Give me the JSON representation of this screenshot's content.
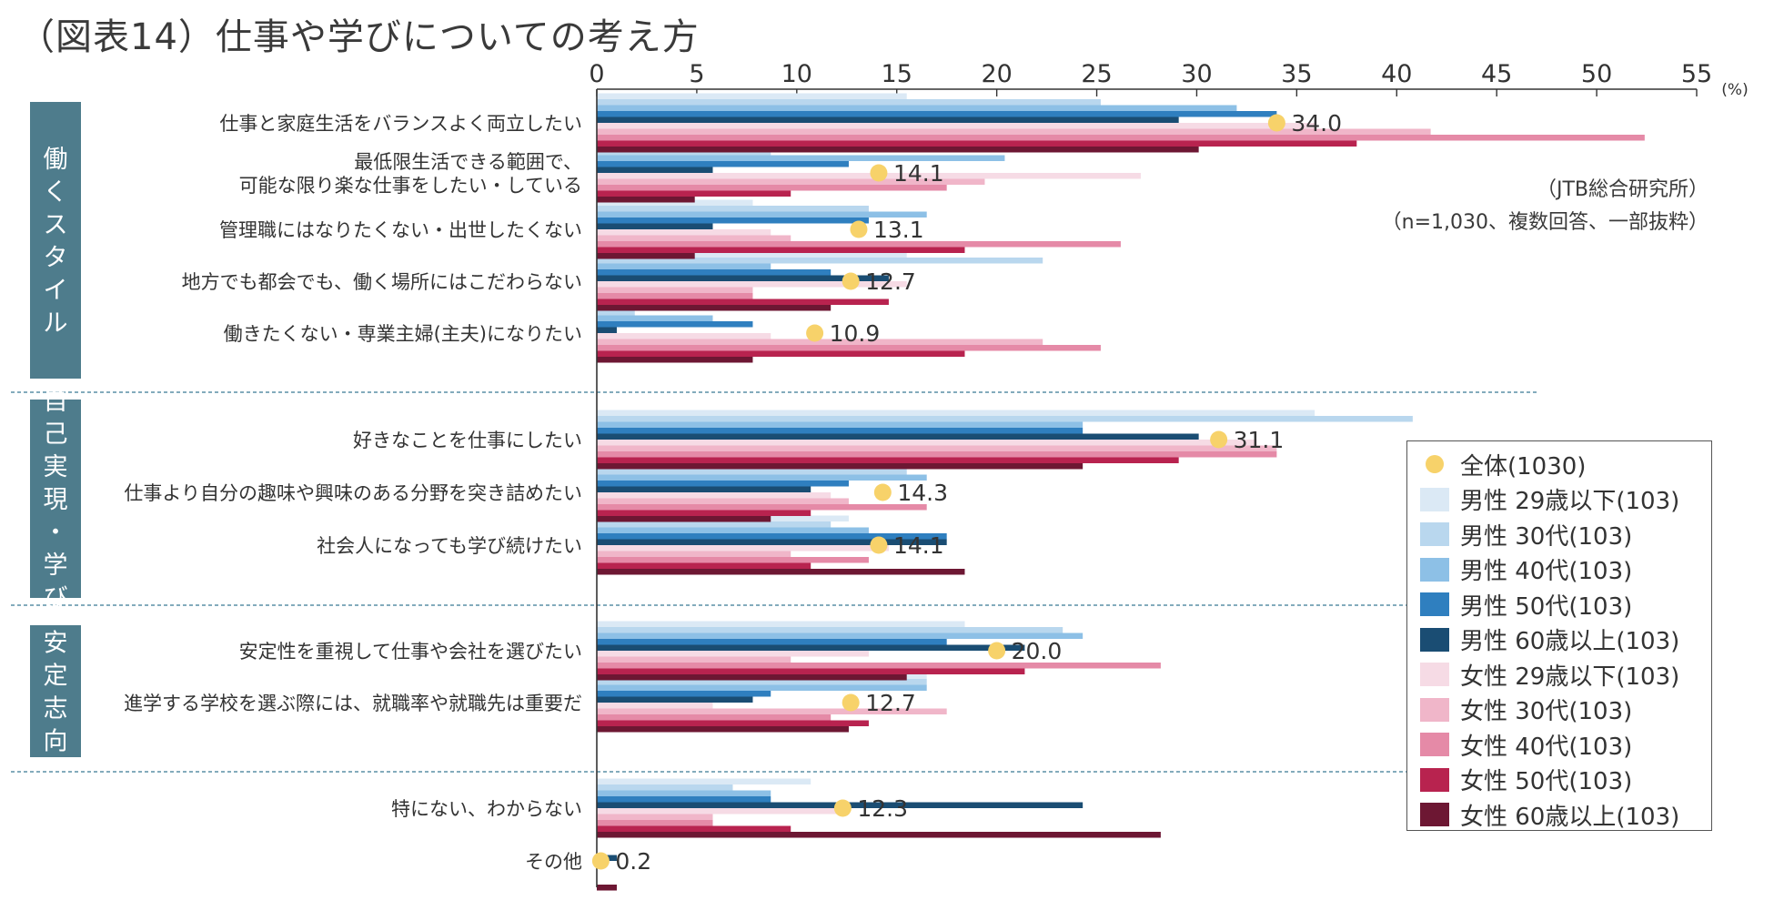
{
  "title": "（図表14）仕事や学びについての考え方",
  "source_note": "（JTB総合研究所）",
  "sample_note": "（n=1,030、複数回答、一部抜粋）",
  "colors": {
    "total_dot": "#f7d26a",
    "category_box": "#4e7c8c",
    "separator": "#5a8fa5",
    "axis": "#333333"
  },
  "chart_data": {
    "type": "bar",
    "orientation": "horizontal",
    "unit": "(%)",
    "xlim": [
      0,
      55
    ],
    "xticks": [
      0,
      5,
      10,
      15,
      20,
      25,
      30,
      35,
      40,
      45,
      50,
      55
    ],
    "groups": [
      {
        "label": "働くスタイル",
        "range": [
          0,
          4
        ]
      },
      {
        "label": "自己実現・学び",
        "range": [
          5,
          7
        ]
      },
      {
        "label": "安定志向",
        "range": [
          8,
          9
        ]
      }
    ],
    "categories": [
      "仕事と家庭生活をバランスよく両立したい",
      "最低限生活できる範囲で、\n可能な限り楽な仕事をしたい・している",
      "管理職にはなりたくない・出世したくない",
      "地方でも都会でも、働く場所にはこだわらない",
      "働きたくない・専業主婦(主夫)になりたい",
      "好きなことを仕事にしたい",
      "仕事より自分の趣味や興味のある分野を突き詰めたい",
      "社会人になっても学び続けたい",
      "安定性を重視して仕事や会社を選びたい",
      "進学する学校を選ぶ際には、就職率や就職先は重要だ",
      "特にない、わからない",
      "その他"
    ],
    "total": {
      "name": "全体(1030)",
      "values": [
        34.0,
        14.1,
        13.1,
        12.7,
        10.9,
        31.1,
        14.3,
        14.1,
        20.0,
        12.7,
        12.3,
        0.2
      ],
      "labels": [
        "34.0",
        "14.1",
        "13.1",
        "12.7",
        "10.9",
        "31.1",
        "14.3",
        "14.1",
        "20.0",
        "12.7",
        "12.3",
        "0.2"
      ]
    },
    "series": [
      {
        "name": "男性 29歳以下(103)",
        "color": "#dbe9f5",
        "values": [
          15.5,
          14.6,
          7.8,
          15.5,
          9.7,
          35.9,
          21.4,
          12.6,
          18.4,
          16.5,
          10.7,
          0
        ]
      },
      {
        "name": "男性 30代(103)",
        "color": "#b9d7ee",
        "values": [
          25.2,
          8.7,
          13.6,
          22.3,
          1.9,
          40.8,
          15.5,
          11.7,
          23.3,
          16.5,
          6.8,
          0
        ]
      },
      {
        "name": "男性 40代(103)",
        "color": "#8dc0e6",
        "values": [
          32.0,
          20.4,
          16.5,
          8.7,
          5.8,
          24.3,
          16.5,
          13.6,
          24.3,
          16.5,
          8.7,
          0
        ]
      },
      {
        "name": "男性 50代(103)",
        "color": "#2f7fbf",
        "values": [
          34.0,
          12.6,
          13.6,
          11.7,
          7.8,
          24.3,
          12.6,
          17.5,
          17.5,
          8.7,
          8.7,
          0
        ]
      },
      {
        "name": "男性 60歳以上(103)",
        "color": "#1a4d73",
        "values": [
          29.1,
          5.8,
          5.8,
          14.6,
          1.0,
          30.1,
          10.7,
          17.5,
          21.4,
          7.8,
          24.3,
          1.0
        ]
      },
      {
        "name": "女性 29歳以下(103)",
        "color": "#f6dbe5",
        "values": [
          35.9,
          27.2,
          8.7,
          15.5,
          8.7,
          33.0,
          11.7,
          14.6,
          13.6,
          5.8,
          12.6,
          0
        ]
      },
      {
        "name": "女性 30代(103)",
        "color": "#f0b6c9",
        "values": [
          41.7,
          19.4,
          9.7,
          7.8,
          22.3,
          34.0,
          12.6,
          9.7,
          9.7,
          17.5,
          5.8,
          0
        ]
      },
      {
        "name": "女性 40代(103)",
        "color": "#e58aa7",
        "values": [
          52.4,
          17.5,
          26.2,
          7.8,
          25.2,
          34.0,
          16.5,
          13.6,
          28.2,
          11.7,
          5.8,
          0
        ]
      },
      {
        "name": "女性 50代(103)",
        "color": "#b8234f",
        "values": [
          38.0,
          9.7,
          18.4,
          14.6,
          18.4,
          29.1,
          10.7,
          10.7,
          21.4,
          13.6,
          9.7,
          0
        ]
      },
      {
        "name": "女性 60歳以上(103)",
        "color": "#6d1733",
        "values": [
          30.1,
          4.9,
          4.9,
          11.7,
          7.8,
          24.3,
          8.7,
          18.4,
          15.5,
          12.6,
          28.2,
          1.0
        ]
      }
    ]
  }
}
